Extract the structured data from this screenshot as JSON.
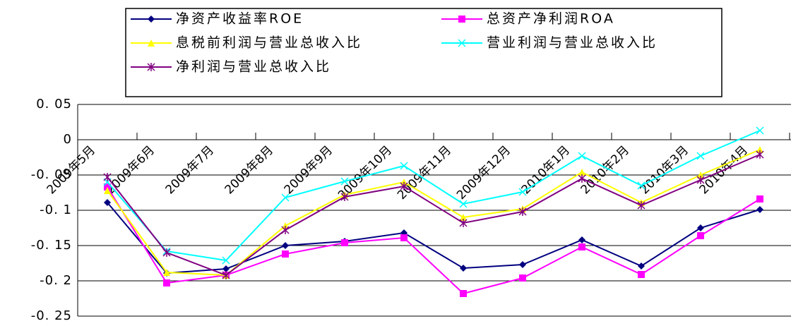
{
  "chart_data": {
    "type": "line",
    "categories": [
      "2009年5月",
      "2009年6月",
      "2009年7月",
      "2009年8月",
      "2009年9月",
      "2009年10月",
      "2009年11月",
      "2009年12月",
      "2010年1月",
      "2010年2月",
      "2010年3月",
      "2010年4月"
    ],
    "series": [
      {
        "name": "净资产收益率ROE",
        "color": "#000080",
        "marker": "diamond",
        "values": [
          -0.089,
          -0.189,
          -0.183,
          -0.15,
          -0.144,
          -0.132,
          -0.182,
          -0.177,
          -0.142,
          -0.179,
          -0.125,
          -0.099
        ]
      },
      {
        "name": "总资产净利润ROA",
        "color": "#ff00ff",
        "marker": "square",
        "values": [
          -0.067,
          -0.203,
          -0.192,
          -0.162,
          -0.146,
          -0.139,
          -0.218,
          -0.196,
          -0.152,
          -0.191,
          -0.136,
          -0.084
        ]
      },
      {
        "name": "息税前利润与营业总收入比",
        "color": "#ffff00",
        "marker": "triangle",
        "values": [
          -0.072,
          -0.188,
          -0.192,
          -0.122,
          -0.078,
          -0.06,
          -0.11,
          -0.098,
          -0.046,
          -0.089,
          -0.05,
          -0.014
        ]
      },
      {
        "name": "营业利润与营业总收入比",
        "color": "#00ffff",
        "marker": "x",
        "values": [
          -0.06,
          -0.158,
          -0.171,
          -0.082,
          -0.059,
          -0.037,
          -0.091,
          -0.074,
          -0.023,
          -0.065,
          -0.023,
          0.013
        ]
      },
      {
        "name": "净利润与营业总收入比",
        "color": "#800080",
        "marker": "asterisk",
        "values": [
          -0.053,
          -0.16,
          -0.192,
          -0.128,
          -0.081,
          -0.066,
          -0.118,
          -0.102,
          -0.055,
          -0.093,
          -0.057,
          -0.021
        ]
      }
    ],
    "ylim": [
      -0.25,
      0.05
    ],
    "yticks": [
      {
        "value": 0.05,
        "label": "0. 05"
      },
      0,
      {
        "value": -0.05,
        "label": "-0. 05"
      },
      {
        "value": -0.1,
        "label": "-0. 1"
      },
      {
        "value": -0.15,
        "label": "-0. 15"
      },
      {
        "value": -0.2,
        "label": "-0. 2"
      },
      {
        "value": -0.25,
        "label": "-0. 25"
      }
    ],
    "grid": true
  }
}
